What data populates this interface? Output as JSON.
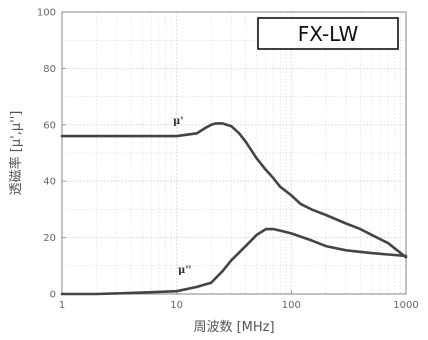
{
  "chart_data": {
    "type": "line",
    "xscale": "log",
    "xlim": [
      1,
      1000
    ],
    "ylim": [
      0,
      100
    ],
    "xticks": [
      1,
      10,
      100,
      1000
    ],
    "yticks": [
      0,
      20,
      40,
      60,
      80,
      100
    ],
    "grid": true,
    "xlabel": "周波数 [MHz]",
    "ylabel": "透磁率 [μ',μ'']",
    "legend_box": "FX-LW",
    "colors": {
      "line": "#444444",
      "grid": "#cccccc",
      "frame": "#9a9a9a"
    },
    "series": [
      {
        "name": "μ'",
        "x": [
          1,
          2,
          5,
          10,
          15,
          18,
          20,
          22,
          25,
          30,
          35,
          40,
          50,
          60,
          70,
          80,
          100,
          120,
          150,
          200,
          300,
          400,
          500,
          700,
          1000
        ],
        "y": [
          56,
          56,
          56,
          56,
          57,
          59,
          60,
          60.5,
          60.5,
          59.5,
          57,
          54,
          48,
          44,
          41,
          38,
          35,
          32,
          30,
          28,
          25,
          23,
          21,
          18,
          13
        ]
      },
      {
        "name": "μ''",
        "x": [
          1,
          2,
          5,
          10,
          15,
          20,
          25,
          30,
          40,
          50,
          60,
          70,
          80,
          100,
          150,
          200,
          300,
          500,
          700,
          1000
        ],
        "y": [
          0,
          0,
          0.5,
          1,
          2.5,
          4,
          8,
          12,
          17,
          21,
          23,
          23,
          22.5,
          21.5,
          19,
          17,
          15.5,
          14.5,
          14,
          13.5
        ]
      }
    ]
  }
}
